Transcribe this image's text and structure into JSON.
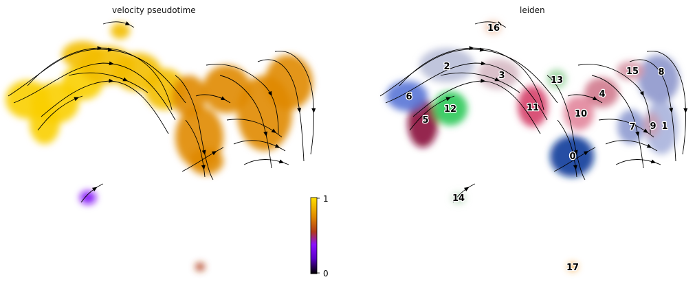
{
  "panels": {
    "left_title": "velocity pseudotime",
    "right_title": "leiden"
  },
  "colors": {
    "pseudotime_colormap": [
      "#000000",
      "#7a00ff",
      "#c2410c",
      "#e08a00",
      "#ffd000",
      "#fff200"
    ],
    "arrow": "#000000"
  },
  "chart_data": [
    {
      "type": "scatter",
      "title": "velocity pseudotime",
      "encoding": "embedding colored by continuous velocity pseudotime with velocity streamlines",
      "colorbar": {
        "min_label": "0",
        "max_label": "1",
        "range": [
          0,
          1
        ]
      },
      "regions": [
        {
          "region": "left lobe",
          "pseudotime": 0.95
        },
        {
          "region": "upper arch",
          "pseudotime": 0.9
        },
        {
          "region": "central valley and right lobe",
          "pseudotime": 0.75
        },
        {
          "region": "small lower cluster",
          "pseudotime": 0.35
        },
        {
          "region": "bottom dot",
          "pseudotime": 0.55
        }
      ],
      "grid": false
    },
    {
      "type": "scatter",
      "title": "leiden",
      "encoding": "embedding colored by leiden cluster with velocity streamlines",
      "clusters": [
        {
          "label": "0",
          "color": "#0a3a9a"
        },
        {
          "label": "1",
          "color": "#a9b2dc"
        },
        {
          "label": "2",
          "color": "#b9bfd8"
        },
        {
          "label": "3",
          "color": "#d6b9c4"
        },
        {
          "label": "4",
          "color": "#d07a8e"
        },
        {
          "label": "5",
          "color": "#8a0f3c"
        },
        {
          "label": "6",
          "color": "#5a76d6"
        },
        {
          "label": "7",
          "color": "#8f9bd0"
        },
        {
          "label": "8",
          "color": "#8e97cc"
        },
        {
          "label": "9",
          "color": "#c9a0b4"
        },
        {
          "label": "10",
          "color": "#e2869c"
        },
        {
          "label": "11",
          "color": "#d5406a"
        },
        {
          "label": "12",
          "color": "#2fc95a"
        },
        {
          "label": "13",
          "color": "#9ed6a4"
        },
        {
          "label": "14",
          "color": "#bcdcc0"
        },
        {
          "label": "15",
          "color": "#d89aa9"
        },
        {
          "label": "16",
          "color": "#f1cab4"
        },
        {
          "label": "17",
          "color": "#f2a233"
        }
      ],
      "legend": "on data",
      "grid": false
    }
  ]
}
